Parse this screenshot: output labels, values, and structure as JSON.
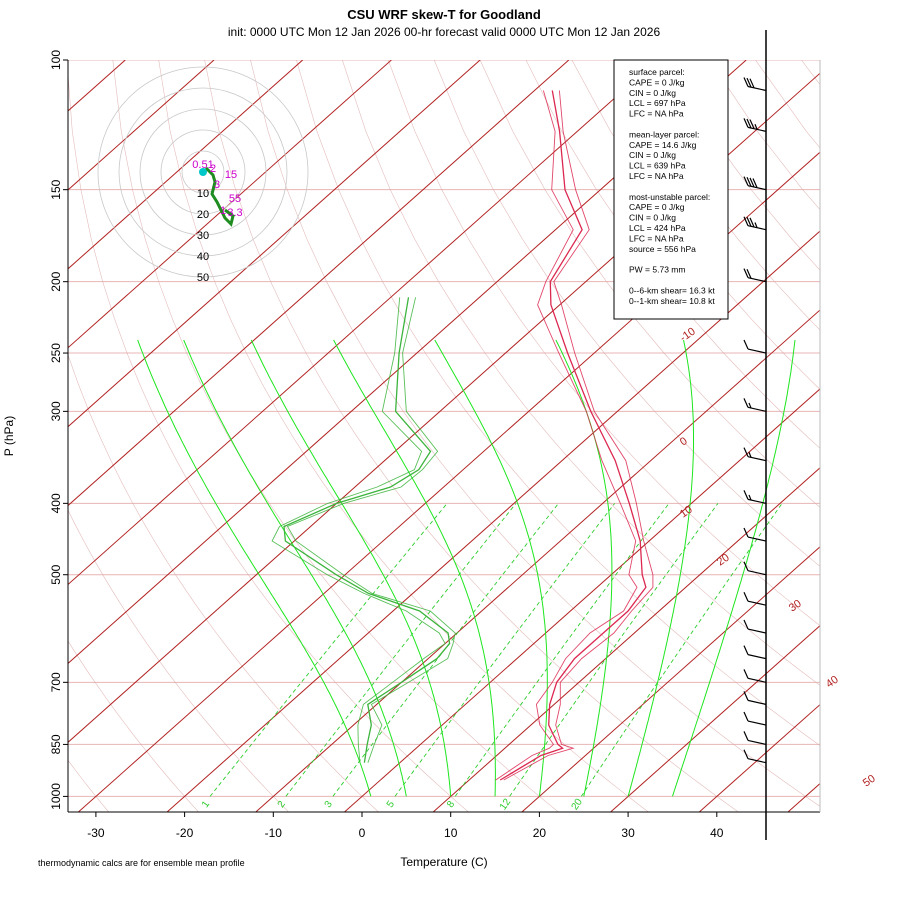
{
  "header": {
    "title": "CSU WRF skew-T for Goodland",
    "subtitle": "init: 0000 UTC Mon 12 Jan 2026     00-hr forecast valid 0000 UTC Mon 12 Jan 2026"
  },
  "footer": {
    "note": "thermodynamic calcs are for ensemble mean profile"
  },
  "legend": {
    "lines": [
      "surface parcel:",
      "CAPE = 0 J/kg",
      "CIN = 0 J/kg",
      "LCL = 697 hPa",
      "LFC = NA hPa",
      "",
      "mean-layer parcel:",
      "CAPE = 14.6 J/kg",
      "CIN = 0 J/kg",
      "LCL = 639 hPa",
      "LFC = NA hPa",
      "",
      "most-unstable parcel:",
      "CAPE = 0 J/kg",
      "CIN = 0 J/kg",
      "LCL = 424 hPa",
      "LFC = NA hPa",
      "source = 556 hPa",
      "",
      "PW =  5.73 mm",
      "",
      "0--6-km shear= 16.3 kt",
      "0--1-km shear= 10.8 kt"
    ]
  },
  "colors": {
    "isotherm": "#b22222",
    "isobar": "#e8b4b4",
    "temperature": "#dc2850",
    "dewpoint": "#3cb43c",
    "mixing_ratio": "#2ecc2e",
    "dry_adiabat": "#d9a0a0",
    "hodograph_ring": "#c8c8c8",
    "hodograph_trace": "#cc00cc"
  },
  "chart_data": {
    "type": "line",
    "title": "CSU WRF skew-T for Goodland",
    "xlabel": "Temperature (C)",
    "ylabel": "P (hPa)",
    "xlim": [
      -33,
      51
    ],
    "ylim": [
      1050,
      100
    ],
    "y_scale": "log",
    "x_ticks": [
      -30,
      -20,
      -10,
      0,
      10,
      20,
      30,
      40
    ],
    "y_ticks": [
      1000,
      850,
      700,
      500,
      400,
      300,
      250,
      200,
      150,
      100
    ],
    "isotherm_labels": [
      "-10",
      "0",
      "10",
      "20",
      "30",
      "40",
      "50"
    ],
    "mixing_ratio_labels": [
      "1",
      "2",
      "3",
      "5",
      "8",
      "12",
      "20"
    ],
    "series": [
      {
        "role": "temperature",
        "pressure": [
          950,
          880,
          860,
          850,
          800,
          750,
          700,
          650,
          600,
          560,
          520,
          500,
          450,
          400,
          350,
          300,
          250,
          215,
          200,
          170,
          150,
          125,
          110
        ],
        "values": [
          13.5,
          15,
          16.5,
          15.5,
          12,
          9.5,
          7.5,
          6.5,
          6.5,
          6.5,
          5.5,
          3.5,
          -1,
          -7,
          -14,
          -23,
          -33,
          -41,
          -44,
          -47,
          -54,
          -62,
          -68
        ]
      },
      {
        "role": "dewpoint",
        "pressure": [
          900,
          850,
          800,
          750,
          700,
          650,
          620,
          600,
          560,
          530,
          500,
          450,
          430,
          400,
          380,
          360,
          340,
          300,
          250,
          210
        ],
        "values": [
          -4,
          -6,
          -8,
          -11,
          -10,
          -9,
          -9.5,
          -11,
          -17,
          -25,
          -31,
          -41,
          -43,
          -40,
          -36,
          -35,
          -36,
          -45,
          -52,
          -58
        ]
      }
    ],
    "hodograph": {
      "rings": [
        "10",
        "20",
        "30",
        "40",
        "50"
      ],
      "point_labels": [
        "0.51",
        "2",
        "15",
        "3",
        "55",
        "1",
        "3.3"
      ]
    },
    "wind_barbs": {
      "pressure": [
        110,
        125,
        150,
        170,
        200,
        250,
        300,
        350,
        400,
        450,
        500,
        550,
        600,
        650,
        700,
        750,
        800,
        850,
        900
      ],
      "speed_kt": [
        30,
        35,
        40,
        35,
        20,
        10,
        15,
        15,
        15,
        10,
        10,
        10,
        10,
        10,
        10,
        10,
        10,
        10,
        10
      ]
    }
  }
}
